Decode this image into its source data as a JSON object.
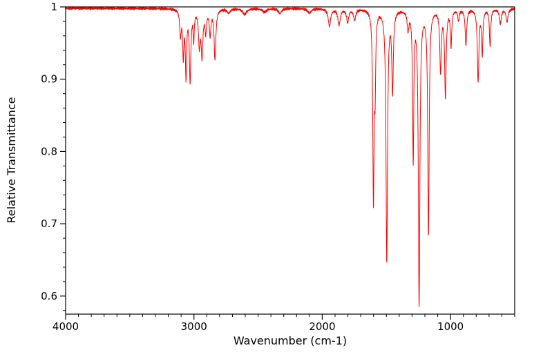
{
  "chart_data": {
    "type": "line",
    "title": "",
    "xlabel": "Wavenumber (cm-1)",
    "ylabel": "Relative Transmittance",
    "line_color": "#ff0000",
    "axis_color": "#000000",
    "background_color": "#ffffff",
    "legend": "none",
    "grid": false,
    "x_axis": {
      "max": 4000,
      "min": 500,
      "reversed": true,
      "major_ticks": [
        4000,
        3000,
        2000,
        1000
      ],
      "major_tick_labels": [
        "4000",
        "3000",
        "2000",
        "1000"
      ],
      "minor_tick_interval": 100
    },
    "y_axis": {
      "min": 0.575,
      "max": 1.0,
      "major_ticks": [
        0.6,
        0.7,
        0.8,
        0.9,
        1.0
      ],
      "major_tick_labels": [
        "0.6",
        "0.7",
        "0.8",
        "0.9",
        "1"
      ],
      "minor_tick_interval": 0.02
    },
    "baseline_transmittance": 0.998,
    "peaks": [
      {
        "center": 3105,
        "depth": 0.035,
        "width": 7
      },
      {
        "center": 3083,
        "depth": 0.062,
        "width": 6
      },
      {
        "center": 3062,
        "depth": 0.09,
        "width": 6
      },
      {
        "center": 3030,
        "depth": 0.098,
        "width": 7
      },
      {
        "center": 3002,
        "depth": 0.04,
        "width": 5
      },
      {
        "center": 2958,
        "depth": 0.048,
        "width": 8
      },
      {
        "center": 2937,
        "depth": 0.062,
        "width": 8
      },
      {
        "center": 2908,
        "depth": 0.03,
        "width": 7
      },
      {
        "center": 2874,
        "depth": 0.035,
        "width": 7
      },
      {
        "center": 2836,
        "depth": 0.07,
        "width": 8
      },
      {
        "center": 2730,
        "depth": 0.006,
        "width": 14
      },
      {
        "center": 2605,
        "depth": 0.008,
        "width": 18
      },
      {
        "center": 2450,
        "depth": 0.005,
        "width": 18
      },
      {
        "center": 2330,
        "depth": 0.007,
        "width": 14
      },
      {
        "center": 2100,
        "depth": 0.006,
        "width": 16
      },
      {
        "center": 1944,
        "depth": 0.024,
        "width": 11
      },
      {
        "center": 1869,
        "depth": 0.022,
        "width": 11
      },
      {
        "center": 1802,
        "depth": 0.018,
        "width": 10
      },
      {
        "center": 1748,
        "depth": 0.015,
        "width": 10
      },
      {
        "center": 1601,
        "depth": 0.265,
        "width": 6
      },
      {
        "center": 1588,
        "depth": 0.095,
        "width": 5
      },
      {
        "center": 1497,
        "depth": 0.35,
        "width": 7
      },
      {
        "center": 1452,
        "depth": 0.112,
        "width": 7
      },
      {
        "center": 1331,
        "depth": 0.025,
        "width": 8
      },
      {
        "center": 1291,
        "depth": 0.205,
        "width": 5.5
      },
      {
        "center": 1245,
        "depth": 0.41,
        "width": 7
      },
      {
        "center": 1172,
        "depth": 0.31,
        "width": 6.5
      },
      {
        "center": 1078,
        "depth": 0.085,
        "width": 7
      },
      {
        "center": 1040,
        "depth": 0.12,
        "width": 7
      },
      {
        "center": 996,
        "depth": 0.05,
        "width": 6
      },
      {
        "center": 938,
        "depth": 0.015,
        "width": 7
      },
      {
        "center": 880,
        "depth": 0.05,
        "width": 7
      },
      {
        "center": 785,
        "depth": 0.1,
        "width": 7
      },
      {
        "center": 753,
        "depth": 0.062,
        "width": 6
      },
      {
        "center": 692,
        "depth": 0.052,
        "width": 6
      },
      {
        "center": 612,
        "depth": 0.02,
        "width": 9
      },
      {
        "center": 560,
        "depth": 0.018,
        "width": 9
      }
    ]
  }
}
